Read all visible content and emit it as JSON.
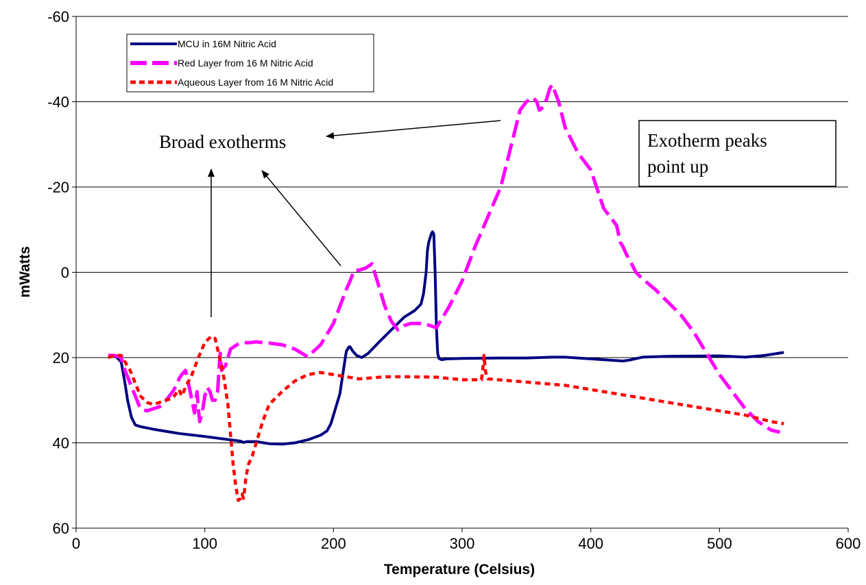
{
  "chart_data": {
    "type": "line",
    "title": "",
    "xlabel": "Temperature (Celsius)",
    "ylabel": "mWatts",
    "xlim": [
      0,
      600
    ],
    "ylim": [
      60,
      -60
    ],
    "y_inverted": true,
    "x_ticks": [
      0,
      100,
      200,
      300,
      400,
      500,
      600
    ],
    "y_ticks": [
      -60,
      -40,
      -20,
      0,
      20,
      40,
      60
    ],
    "grid": "horizontal",
    "legend_position": "top-left",
    "series": [
      {
        "name": "MCU in 16M Nitric Acid",
        "color": "#000080",
        "dash": "solid",
        "x": [
          25,
          30,
          35,
          38,
          40,
          43,
          46,
          50,
          60,
          80,
          100,
          120,
          128,
          130,
          133,
          140,
          150,
          160,
          170,
          180,
          190,
          195,
          198,
          202,
          205,
          208,
          210,
          212,
          213,
          215,
          218,
          222,
          227,
          235,
          245,
          255,
          263,
          268,
          270,
          272,
          273,
          274,
          275,
          276,
          277,
          278,
          279,
          280,
          281,
          282,
          284,
          288,
          300,
          330,
          350,
          370,
          380,
          400,
          420,
          425,
          430,
          440,
          460,
          500,
          520,
          535,
          550
        ],
        "y": [
          20,
          19.5,
          21,
          26,
          30,
          34,
          35.8,
          36.2,
          36.8,
          37.8,
          38.5,
          39.3,
          39.6,
          39.9,
          39.7,
          39.7,
          40.2,
          40.3,
          40,
          39.3,
          38.2,
          37.2,
          35.5,
          31.5,
          28.5,
          22.5,
          18.5,
          17.5,
          17.5,
          18.5,
          19.5,
          20,
          19,
          16.5,
          13.5,
          10.5,
          9,
          7.5,
          5,
          0,
          -5,
          -7,
          -8,
          -9,
          -9.5,
          -9,
          0,
          13,
          19,
          20.2,
          20.5,
          20.3,
          20.2,
          20.1,
          20.1,
          19.9,
          19.9,
          20.3,
          20.7,
          20.8,
          20.6,
          19.9,
          19.7,
          19.6,
          19.9,
          19.5,
          18.8
        ]
      },
      {
        "name": "Red Layer from 16 M Nitric Acid",
        "color": "#FF00FF",
        "dash": "long-dash",
        "x": [
          25,
          30,
          35,
          38,
          42,
          46,
          50,
          55,
          60,
          65,
          70,
          75,
          78,
          80,
          82,
          85,
          88,
          90,
          92,
          94,
          95,
          96,
          98,
          100,
          102,
          104,
          106,
          108,
          110,
          111,
          112,
          113,
          114,
          116,
          118,
          120,
          125,
          130,
          135,
          140,
          145,
          150,
          160,
          170,
          180,
          190,
          200,
          210,
          213,
          216,
          220,
          225,
          230,
          235,
          240,
          245,
          250,
          255,
          260,
          270,
          280,
          290,
          300,
          310,
          320,
          330,
          340,
          345,
          350,
          355,
          358,
          360,
          362,
          364,
          366,
          368,
          370,
          375,
          380,
          390,
          400,
          410,
          420,
          423,
          425,
          428,
          430,
          435,
          440,
          450,
          460,
          470,
          480,
          490,
          500,
          510,
          520,
          530,
          540,
          547
        ],
        "y": [
          19.5,
          19.5,
          20,
          23,
          26,
          29,
          32,
          32.5,
          32,
          31.5,
          30,
          28,
          26.5,
          25,
          24,
          23,
          27,
          30,
          33,
          28,
          32,
          35,
          33,
          29,
          27,
          28,
          30,
          30,
          28,
          23,
          19,
          23,
          22.5,
          22,
          20,
          18,
          17,
          16.5,
          16.5,
          16.3,
          16.5,
          16.6,
          17,
          18,
          19.8,
          17,
          12,
          4,
          2,
          -0.5,
          -0.5,
          -1,
          -2,
          3,
          8,
          11.5,
          13.5,
          12.5,
          12,
          12,
          13,
          8,
          2,
          -6,
          -13,
          -20,
          -32,
          -38,
          -40,
          -41,
          -40,
          -38,
          -38.5,
          -39,
          -41,
          -43,
          -44,
          -40,
          -34,
          -28,
          -24,
          -15,
          -11,
          -7,
          -6,
          -4,
          -3,
          0,
          1.5,
          4,
          7,
          10,
          14,
          19,
          24,
          28,
          32,
          35,
          37,
          37.5
        ]
      },
      {
        "name": "Aqueous Layer from 16 M Nitric Acid",
        "color": "#FF0000",
        "dash": "short-dash",
        "x": [
          25,
          30,
          35,
          38,
          42,
          46,
          50,
          55,
          60,
          65,
          70,
          75,
          80,
          82,
          85,
          90,
          95,
          100,
          105,
          108,
          110,
          113,
          115,
          118,
          120,
          122,
          124,
          126,
          128,
          129,
          130,
          131,
          132,
          134,
          137,
          140,
          145,
          150,
          160,
          170,
          180,
          190,
          200,
          210,
          220,
          240,
          260,
          280,
          300,
          315,
          316,
          317,
          318,
          319,
          320,
          340,
          360,
          380,
          400,
          420,
          440,
          460,
          480,
          500,
          520,
          540,
          550
        ],
        "y": [
          20,
          19.5,
          19.5,
          21,
          23,
          26,
          29,
          30.5,
          31,
          30.5,
          30,
          29.5,
          27.5,
          29,
          27,
          24,
          20,
          16.5,
          15,
          15.5,
          18,
          22,
          25,
          31,
          38,
          45,
          50,
          53.5,
          53,
          52,
          53,
          51,
          48,
          45,
          43,
          40,
          35,
          31,
          28,
          25.5,
          24,
          23.5,
          24,
          24.5,
          25,
          24.5,
          24.5,
          24.6,
          25.2,
          25.2,
          23,
          19.5,
          23,
          24.5,
          25,
          25.5,
          26,
          26.5,
          27.5,
          28.5,
          29.5,
          30.5,
          31.5,
          32.5,
          33.5,
          35,
          35.5
        ]
      }
    ],
    "annotations": [
      {
        "name": "broad-exotherms",
        "text": "Broad exotherms",
        "arrows_to": [
          [
            105,
            15
          ],
          [
            218,
            -2
          ],
          [
            330,
            -32
          ]
        ]
      },
      {
        "name": "exotherm-peaks",
        "text_lines": [
          "Exotherm peaks",
          "point up"
        ]
      }
    ]
  }
}
